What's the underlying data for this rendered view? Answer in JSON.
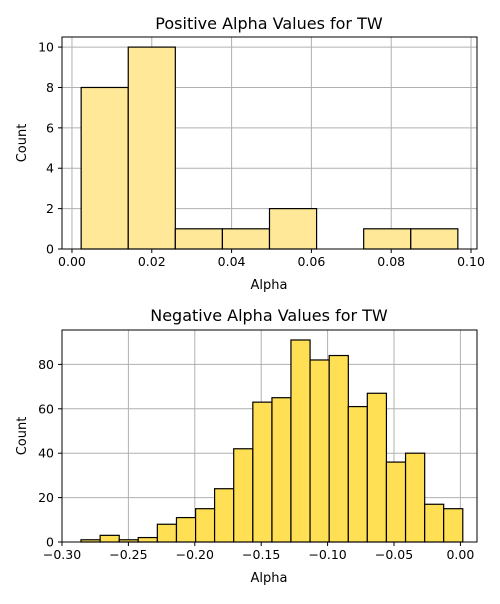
{
  "chart_data": [
    {
      "type": "bar",
      "title": "Positive Alpha Values for TW",
      "xlabel": "Alpha",
      "ylabel": "Count",
      "xlim": [
        -0.0025,
        0.1015
      ],
      "ylim": [
        0,
        10.5
      ],
      "xticks": [
        0.0,
        0.02,
        0.04,
        0.06,
        0.08,
        0.1
      ],
      "xtick_labels": [
        "0.00",
        "0.02",
        "0.04",
        "0.06",
        "0.08",
        "0.10"
      ],
      "yticks": [
        0,
        2,
        4,
        6,
        8,
        10
      ],
      "ytick_labels": [
        "0",
        "2",
        "4",
        "6",
        "8",
        "10"
      ],
      "grid": true,
      "bar_color": "#ffe999",
      "bins": [
        {
          "x0": 0.0023,
          "x1": 0.0141,
          "count": 8
        },
        {
          "x0": 0.0141,
          "x1": 0.0259,
          "count": 10
        },
        {
          "x0": 0.0259,
          "x1": 0.0377,
          "count": 1
        },
        {
          "x0": 0.0377,
          "x1": 0.0495,
          "count": 1
        },
        {
          "x0": 0.0495,
          "x1": 0.0613,
          "count": 2
        },
        {
          "x0": 0.0613,
          "x1": 0.0731,
          "count": 0
        },
        {
          "x0": 0.0731,
          "x1": 0.0849,
          "count": 1
        },
        {
          "x0": 0.0849,
          "x1": 0.0967,
          "count": 1
        }
      ]
    },
    {
      "type": "bar",
      "title": "Negative Alpha Values for TW",
      "xlabel": "Alpha",
      "ylabel": "Count",
      "xlim": [
        -0.3,
        0.0125
      ],
      "ylim": [
        0,
        95.5
      ],
      "xticks": [
        -0.3,
        -0.25,
        -0.2,
        -0.15,
        -0.1,
        -0.05,
        0.0
      ],
      "xtick_labels": [
        "−0.30",
        "−0.25",
        "−0.20",
        "−0.15",
        "−0.10",
        "−0.05",
        "0.00"
      ],
      "yticks": [
        0,
        20,
        40,
        60,
        80
      ],
      "ytick_labels": [
        "0",
        "20",
        "40",
        "60",
        "80"
      ],
      "grid": true,
      "bar_color": "#ffe055",
      "bins": [
        {
          "x0": -0.2857,
          "x1": -0.2713,
          "count": 1
        },
        {
          "x0": -0.2713,
          "x1": -0.2569,
          "count": 3
        },
        {
          "x0": -0.2569,
          "x1": -0.2426,
          "count": 1
        },
        {
          "x0": -0.2426,
          "x1": -0.2282,
          "count": 2
        },
        {
          "x0": -0.2282,
          "x1": -0.2138,
          "count": 8
        },
        {
          "x0": -0.2138,
          "x1": -0.1994,
          "count": 11
        },
        {
          "x0": -0.1994,
          "x1": -0.1851,
          "count": 15
        },
        {
          "x0": -0.1851,
          "x1": -0.1707,
          "count": 24
        },
        {
          "x0": -0.1707,
          "x1": -0.1563,
          "count": 42
        },
        {
          "x0": -0.1563,
          "x1": -0.1419,
          "count": 63
        },
        {
          "x0": -0.1419,
          "x1": -0.1276,
          "count": 65
        },
        {
          "x0": -0.1276,
          "x1": -0.1132,
          "count": 91
        },
        {
          "x0": -0.1132,
          "x1": -0.0988,
          "count": 82
        },
        {
          "x0": -0.0988,
          "x1": -0.0844,
          "count": 84
        },
        {
          "x0": -0.0844,
          "x1": -0.0701,
          "count": 61
        },
        {
          "x0": -0.0701,
          "x1": -0.0557,
          "count": 67
        },
        {
          "x0": -0.0557,
          "x1": -0.0413,
          "count": 36
        },
        {
          "x0": -0.0413,
          "x1": -0.0269,
          "count": 40
        },
        {
          "x0": -0.0269,
          "x1": -0.0126,
          "count": 17
        },
        {
          "x0": -0.0126,
          "x1": 0.0018,
          "count": 15
        }
      ]
    }
  ]
}
